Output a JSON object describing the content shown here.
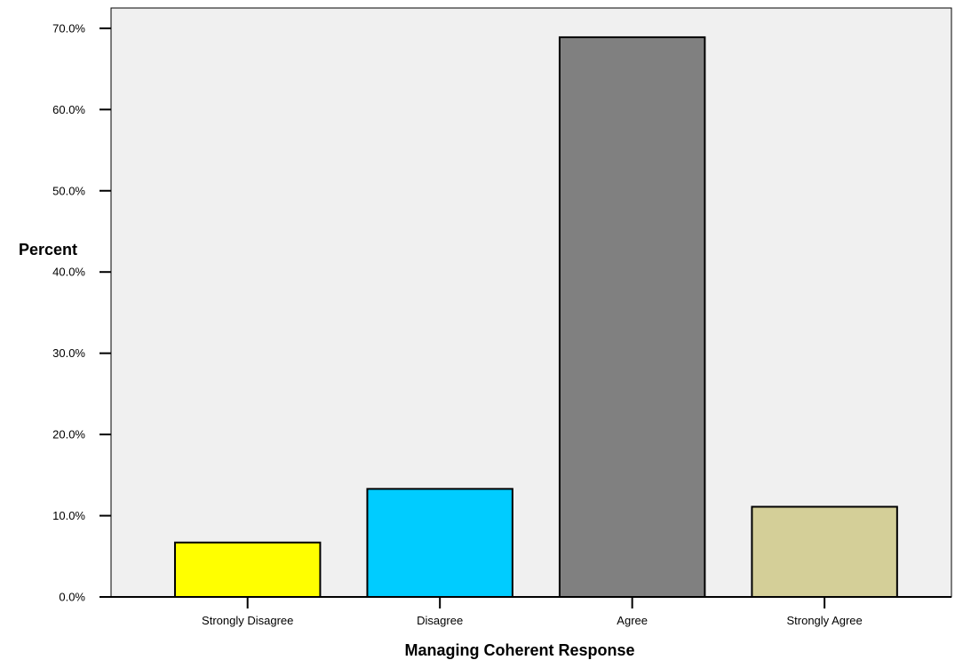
{
  "chart_data": {
    "type": "bar",
    "categories": [
      "Strongly Disagree",
      "Disagree",
      "Agree",
      "Strongly Agree"
    ],
    "values": [
      6.7,
      13.3,
      68.9,
      11.1
    ],
    "xlabel": "Managing Coherent Response",
    "ylabel": "Percent",
    "ylim": [
      0,
      72.5
    ],
    "yticks": [
      "0.0%",
      "10.0%",
      "20.0%",
      "30.0%",
      "40.0%",
      "50.0%",
      "60.0%",
      "70.0%"
    ],
    "ytick_values": [
      0,
      10,
      20,
      30,
      40,
      50,
      60,
      70
    ],
    "colors": [
      "#ffff00",
      "#00ccff",
      "#808080",
      "#d4cf98"
    ],
    "plot_background": "#f0f0f0",
    "grid": false,
    "legend": "none"
  }
}
